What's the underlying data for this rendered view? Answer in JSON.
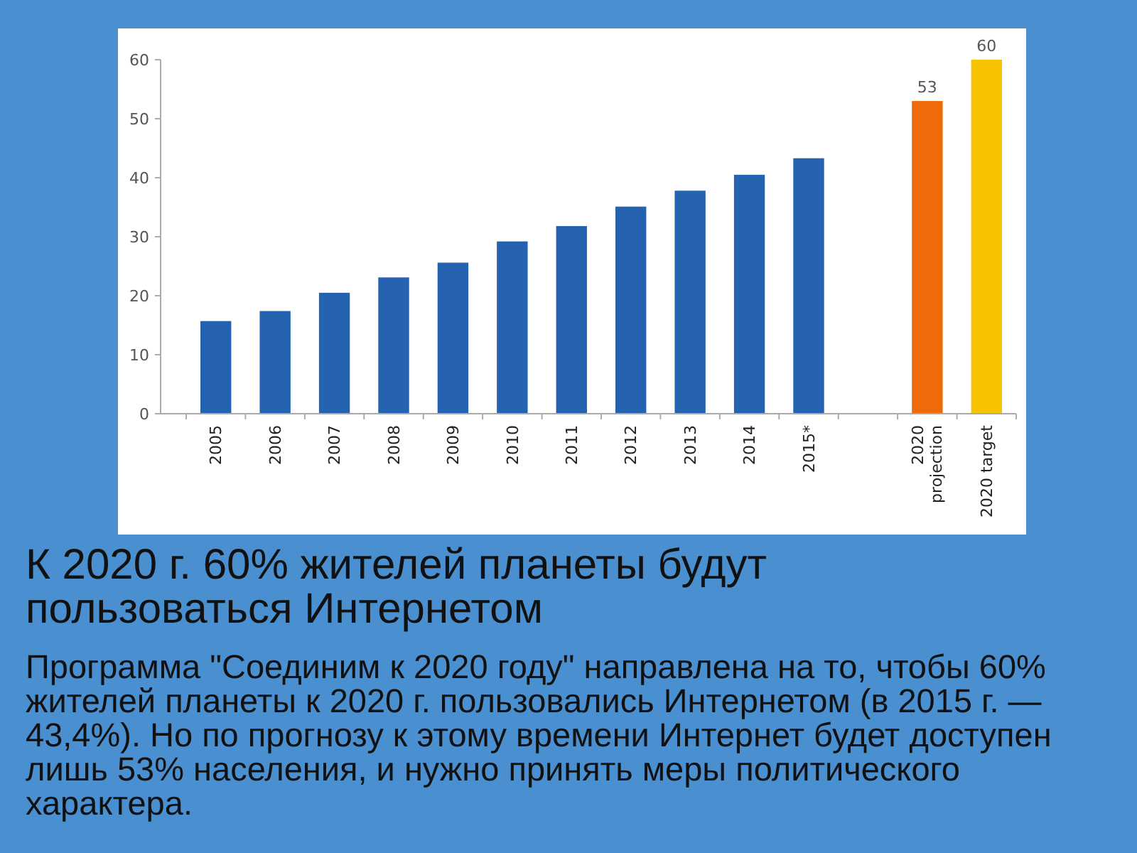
{
  "chart_data": {
    "type": "bar",
    "title": "К 2020 г. 60% жителей планеты будут пользоваться Интернетом",
    "subtitle": "Программа \"Соединим к 2020 году\" направлена на то, чтобы 60% жителей планеты к 2020 г. пользовались Интернетом (в 2015 г. — 43,4%). Но по прогнозу к этому времени Интернет будет доступен лишь 53% населения, и нужно принять меры политического характера.",
    "categories": [
      "2005",
      "2006",
      "2007",
      "2008",
      "2009",
      "2010",
      "2011",
      "2012",
      "2013",
      "2014",
      "2015*",
      null,
      "2020 projection",
      "2020 target"
    ],
    "values": [
      15.7,
      17.4,
      20.5,
      23.1,
      25.6,
      29.2,
      31.8,
      35.1,
      37.8,
      40.5,
      43.3,
      null,
      53,
      60
    ],
    "colors": [
      "#2563b0",
      "#2563b0",
      "#2563b0",
      "#2563b0",
      "#2563b0",
      "#2563b0",
      "#2563b0",
      "#2563b0",
      "#2563b0",
      "#2563b0",
      "#2563b0",
      null,
      "#f06a0a",
      "#f7c300"
    ],
    "value_labels": [
      null,
      null,
      null,
      null,
      null,
      null,
      null,
      null,
      null,
      null,
      null,
      null,
      "53",
      "60"
    ],
    "ylim": [
      0,
      60
    ],
    "yticks": [
      0,
      10,
      20,
      30,
      40,
      50,
      60
    ]
  }
}
